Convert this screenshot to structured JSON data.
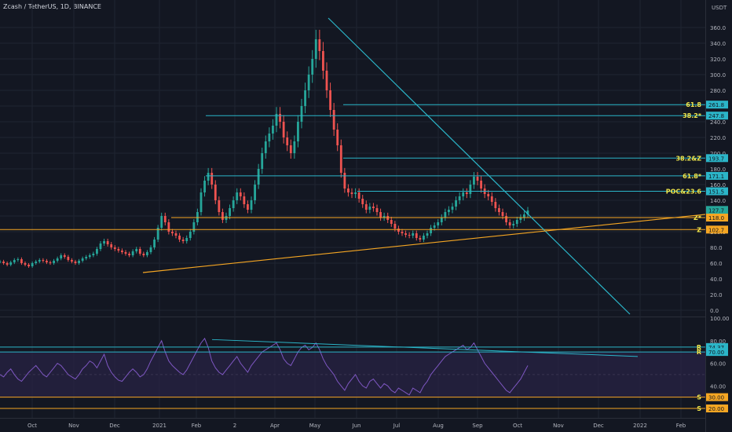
{
  "header": {
    "symbol": "Zcash / TetherUS, 1D, BINANCE",
    "unit": "USDT"
  },
  "colors": {
    "background": "#131722",
    "up": "#26a69a",
    "down": "#ef5350",
    "cyan": "#2bb5c8",
    "orange": "#f5a623",
    "rsi": "#7e57c2",
    "label_yellow": "#f2e84b",
    "grid": "#1f2431"
  },
  "chart_data": {
    "type": "candlestick",
    "price_axis": {
      "ylim": [
        -5,
        375
      ],
      "ticks": [
        "0.0",
        "20.0",
        "40.0",
        "60.0",
        "80.0",
        "100.0",
        "120.0",
        "140.0",
        "160.0",
        "180.0",
        "200.0",
        "220.0",
        "240.0",
        "260.0",
        "280.0",
        "300.0",
        "320.0",
        "340.0",
        "360.0"
      ]
    },
    "time_axis": {
      "ticks": [
        "Oct",
        "Nov",
        "Dec",
        "2021",
        "Feb",
        "2",
        "Apr",
        "May",
        "Jun",
        "Jul",
        "Aug",
        "Sep",
        "Oct",
        "Nov",
        "Dec",
        "2022",
        "Feb"
      ]
    },
    "price_series": [
      62,
      60,
      58,
      61,
      64,
      65,
      60,
      58,
      56,
      60,
      62,
      64,
      63,
      61,
      60,
      63,
      66,
      70,
      68,
      64,
      62,
      60,
      63,
      66,
      68,
      70,
      72,
      78,
      85,
      88,
      84,
      80,
      78,
      76,
      74,
      72,
      70,
      75,
      78,
      72,
      70,
      74,
      80,
      90,
      105,
      120,
      112,
      100,
      98,
      95,
      90,
      88,
      92,
      100,
      112,
      125,
      150,
      165,
      175,
      160,
      140,
      125,
      115,
      120,
      130,
      140,
      150,
      145,
      135,
      128,
      140,
      160,
      180,
      200,
      215,
      225,
      235,
      250,
      240,
      220,
      210,
      200,
      215,
      240,
      260,
      280,
      300,
      320,
      345,
      330,
      305,
      280,
      255,
      230,
      210,
      175,
      155,
      150,
      148,
      150,
      142,
      135,
      128,
      132,
      130,
      125,
      118,
      120,
      115,
      110,
      104,
      100,
      98,
      96,
      95,
      98,
      92,
      90,
      95,
      98,
      105,
      108,
      112,
      118,
      125,
      128,
      132,
      140,
      145,
      150,
      148,
      160,
      170,
      165,
      155,
      148,
      145,
      138,
      130,
      125,
      120,
      112,
      108,
      110,
      115,
      118,
      122,
      127
    ],
    "horizontal_levels": [
      {
        "label": "61.8",
        "value": 261.8,
        "tag": "261.8"
      },
      {
        "label": "38.2*",
        "value": 247.8,
        "tag": "247.8"
      },
      {
        "label": "38.2&Z",
        "value": 193.7,
        "tag": "193.7"
      },
      {
        "label": "61.8*",
        "value": 171.1,
        "tag": "171.1"
      },
      {
        "label": "POC&23.6",
        "value": 151.5,
        "tag": "151.5"
      },
      {
        "label": "",
        "value": 127.7,
        "tag": "127.7"
      },
      {
        "label": "Z*",
        "value": 118.0,
        "tag": "118.0"
      },
      {
        "label": "Z",
        "value": 102.7,
        "tag": "102.7"
      }
    ],
    "rsi": {
      "ylim": [
        20,
        100
      ],
      "ticks": [
        "100.00",
        "80.00",
        "60.00",
        "40.00"
      ],
      "levels": [
        {
          "label": "R",
          "value": 74.37,
          "tag": "74.37"
        },
        {
          "label": "R",
          "value": 70.0,
          "tag": "70.00"
        },
        {
          "label": "S",
          "value": 30.0,
          "tag": "30.00"
        },
        {
          "label": "S",
          "value": 20.0,
          "tag": "20.00"
        }
      ],
      "values": [
        50,
        48,
        52,
        55,
        50,
        46,
        44,
        48,
        52,
        55,
        58,
        54,
        50,
        48,
        52,
        56,
        60,
        58,
        54,
        50,
        48,
        46,
        50,
        55,
        58,
        62,
        60,
        56,
        62,
        68,
        58,
        52,
        48,
        45,
        44,
        48,
        52,
        55,
        52,
        48,
        50,
        55,
        62,
        68,
        74,
        80,
        70,
        62,
        58,
        55,
        52,
        50,
        54,
        60,
        66,
        72,
        78,
        82,
        74,
        62,
        56,
        52,
        50,
        54,
        58,
        62,
        66,
        60,
        56,
        52,
        58,
        62,
        66,
        70,
        72,
        74,
        76,
        78,
        72,
        64,
        60,
        58,
        64,
        70,
        74,
        76,
        72,
        74,
        78,
        72,
        64,
        58,
        54,
        50,
        44,
        40,
        36,
        42,
        46,
        50,
        44,
        40,
        38,
        44,
        46,
        42,
        38,
        42,
        40,
        36,
        34,
        38,
        36,
        34,
        32,
        38,
        36,
        34,
        40,
        44,
        50,
        54,
        58,
        62,
        66,
        68,
        70,
        72,
        74,
        76,
        72,
        74,
        78,
        72,
        66,
        60,
        56,
        52,
        48,
        44,
        40,
        36,
        34,
        38,
        42,
        46,
        52,
        58
      ]
    }
  }
}
